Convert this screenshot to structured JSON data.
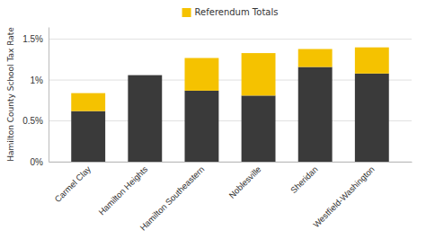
{
  "chart_data": {
    "type": "bar",
    "stacked": true,
    "ylabel": "Hamilton County School Tax Rate",
    "categories": [
      "Carmel Clay",
      "Hamilton Heights",
      "Hamilton Southeastern",
      "Noblesville",
      "Sheridan",
      "Westfield-Washington"
    ],
    "series": [
      {
        "color": "#3a3a3a",
        "values": [
          0.62,
          1.06,
          0.87,
          0.81,
          1.16,
          1.08
        ]
      },
      {
        "name": "Referendum Totals",
        "color": "#f5c200",
        "values": [
          0.22,
          0.0,
          0.4,
          0.52,
          0.22,
          0.32
        ]
      }
    ],
    "ylim": [
      0,
      1.65
    ],
    "yticks": [
      {
        "value": 0.0,
        "label": "0%"
      },
      {
        "value": 0.5,
        "label": "0.5%"
      },
      {
        "value": 1.0,
        "label": "1%"
      },
      {
        "value": 1.5,
        "label": "1.5%"
      }
    ],
    "grid": true,
    "legend": "top"
  }
}
